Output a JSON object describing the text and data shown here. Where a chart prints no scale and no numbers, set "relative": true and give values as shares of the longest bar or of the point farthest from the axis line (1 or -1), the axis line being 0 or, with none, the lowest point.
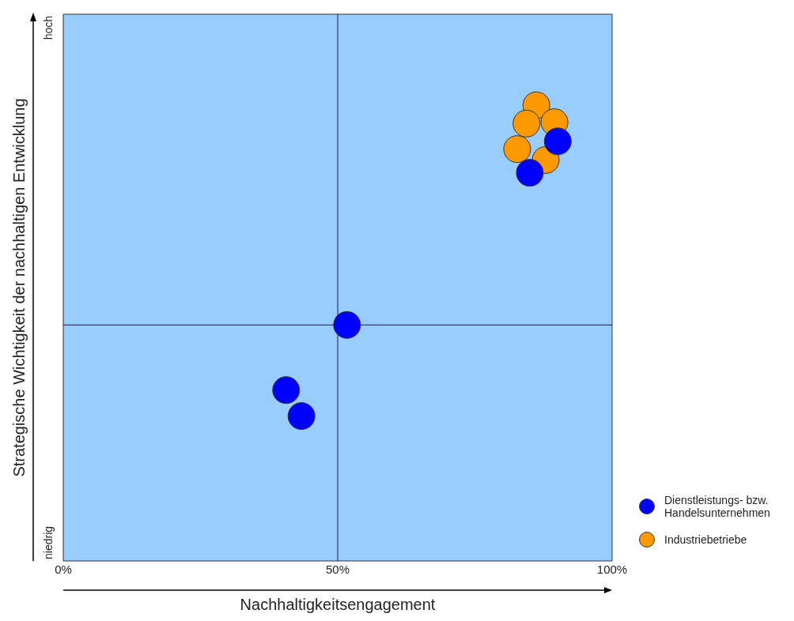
{
  "chart_data": {
    "type": "scatter",
    "relative": true,
    "xlabel": "Nachhaltigkeitsengagement",
    "ylabel": "Strategische Wichtigkeit der nachhaltigen Entwicklung",
    "annotations": [
      "hoch",
      "niedrig"
    ],
    "xlim": [
      0,
      100
    ],
    "xticks": [
      {
        "value": 0,
        "label": "0%"
      },
      {
        "value": 50,
        "label": "50%"
      },
      {
        "value": 100,
        "label": "100%"
      }
    ],
    "grid": false,
    "legend": "bottom right",
    "marker": "circle",
    "ref_lines": [
      {
        "axis": "x",
        "value": 50,
        "color": "#1a1a40"
      },
      {
        "axis": "y",
        "value": 0.518,
        "color": "#1a1a40"
      }
    ],
    "series": [
      {
        "name": "Dienstleistungs- bzw. Handelsunternehmen",
        "color": "#0000ff",
        "x": [
          90.1,
          85.0,
          51.7,
          40.6,
          43.4
        ],
        "values": [
          0.921,
          0.852,
          0.518,
          0.375,
          0.318
        ]
      },
      {
        "name": "Industriebetriebe",
        "color": "#ff9900",
        "x": [
          86.2,
          84.4,
          89.5,
          82.7,
          87.9
        ],
        "values": [
          1,
          0.96,
          0.963,
          0.904,
          0.88
        ]
      }
    ]
  }
}
